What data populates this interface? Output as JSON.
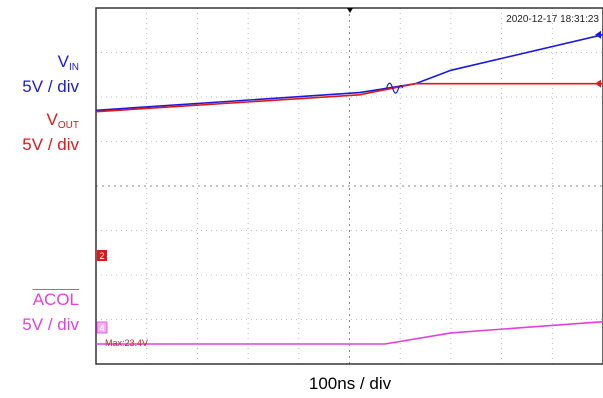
{
  "timestamp": "2020-12-17 18:31:23",
  "x_label": "100ns / div",
  "max_readout": "Max:23.4V",
  "channels": [
    {
      "id": "vin",
      "name": "V",
      "sub": "IN",
      "scale": "5V / div",
      "color": "#1a1adc"
    },
    {
      "id": "vout",
      "name": "V",
      "sub": "OUT",
      "scale": "5V / div",
      "color": "#e01818"
    },
    {
      "id": "acol",
      "name": "ACOL",
      "sub": "",
      "scale": "5V / div",
      "color": "#e040e0"
    }
  ],
  "markers": {
    "ch2": "2",
    "ch4": "4"
  },
  "chart_data": {
    "type": "line",
    "grid": true,
    "x_divisions": 10,
    "y_divisions": 8,
    "xlabel": "100ns / div",
    "series": [
      {
        "name": "VIN",
        "color": "#1a1adc",
        "points": [
          [
            0,
            5.7
          ],
          [
            5.2,
            6.1
          ],
          [
            6.3,
            6.3
          ],
          [
            7.0,
            6.6
          ],
          [
            10.0,
            7.4
          ]
        ]
      },
      {
        "name": "VOUT",
        "color": "#e01818",
        "points": [
          [
            0,
            5.67
          ],
          [
            5.2,
            6.05
          ],
          [
            6.3,
            6.3
          ],
          [
            10.0,
            6.3
          ]
        ]
      },
      {
        "name": "ACOL",
        "color": "#e040e0",
        "points": [
          [
            0,
            0.45
          ],
          [
            5.7,
            0.45
          ],
          [
            7.0,
            0.7
          ],
          [
            10.0,
            0.95
          ]
        ]
      }
    ]
  }
}
